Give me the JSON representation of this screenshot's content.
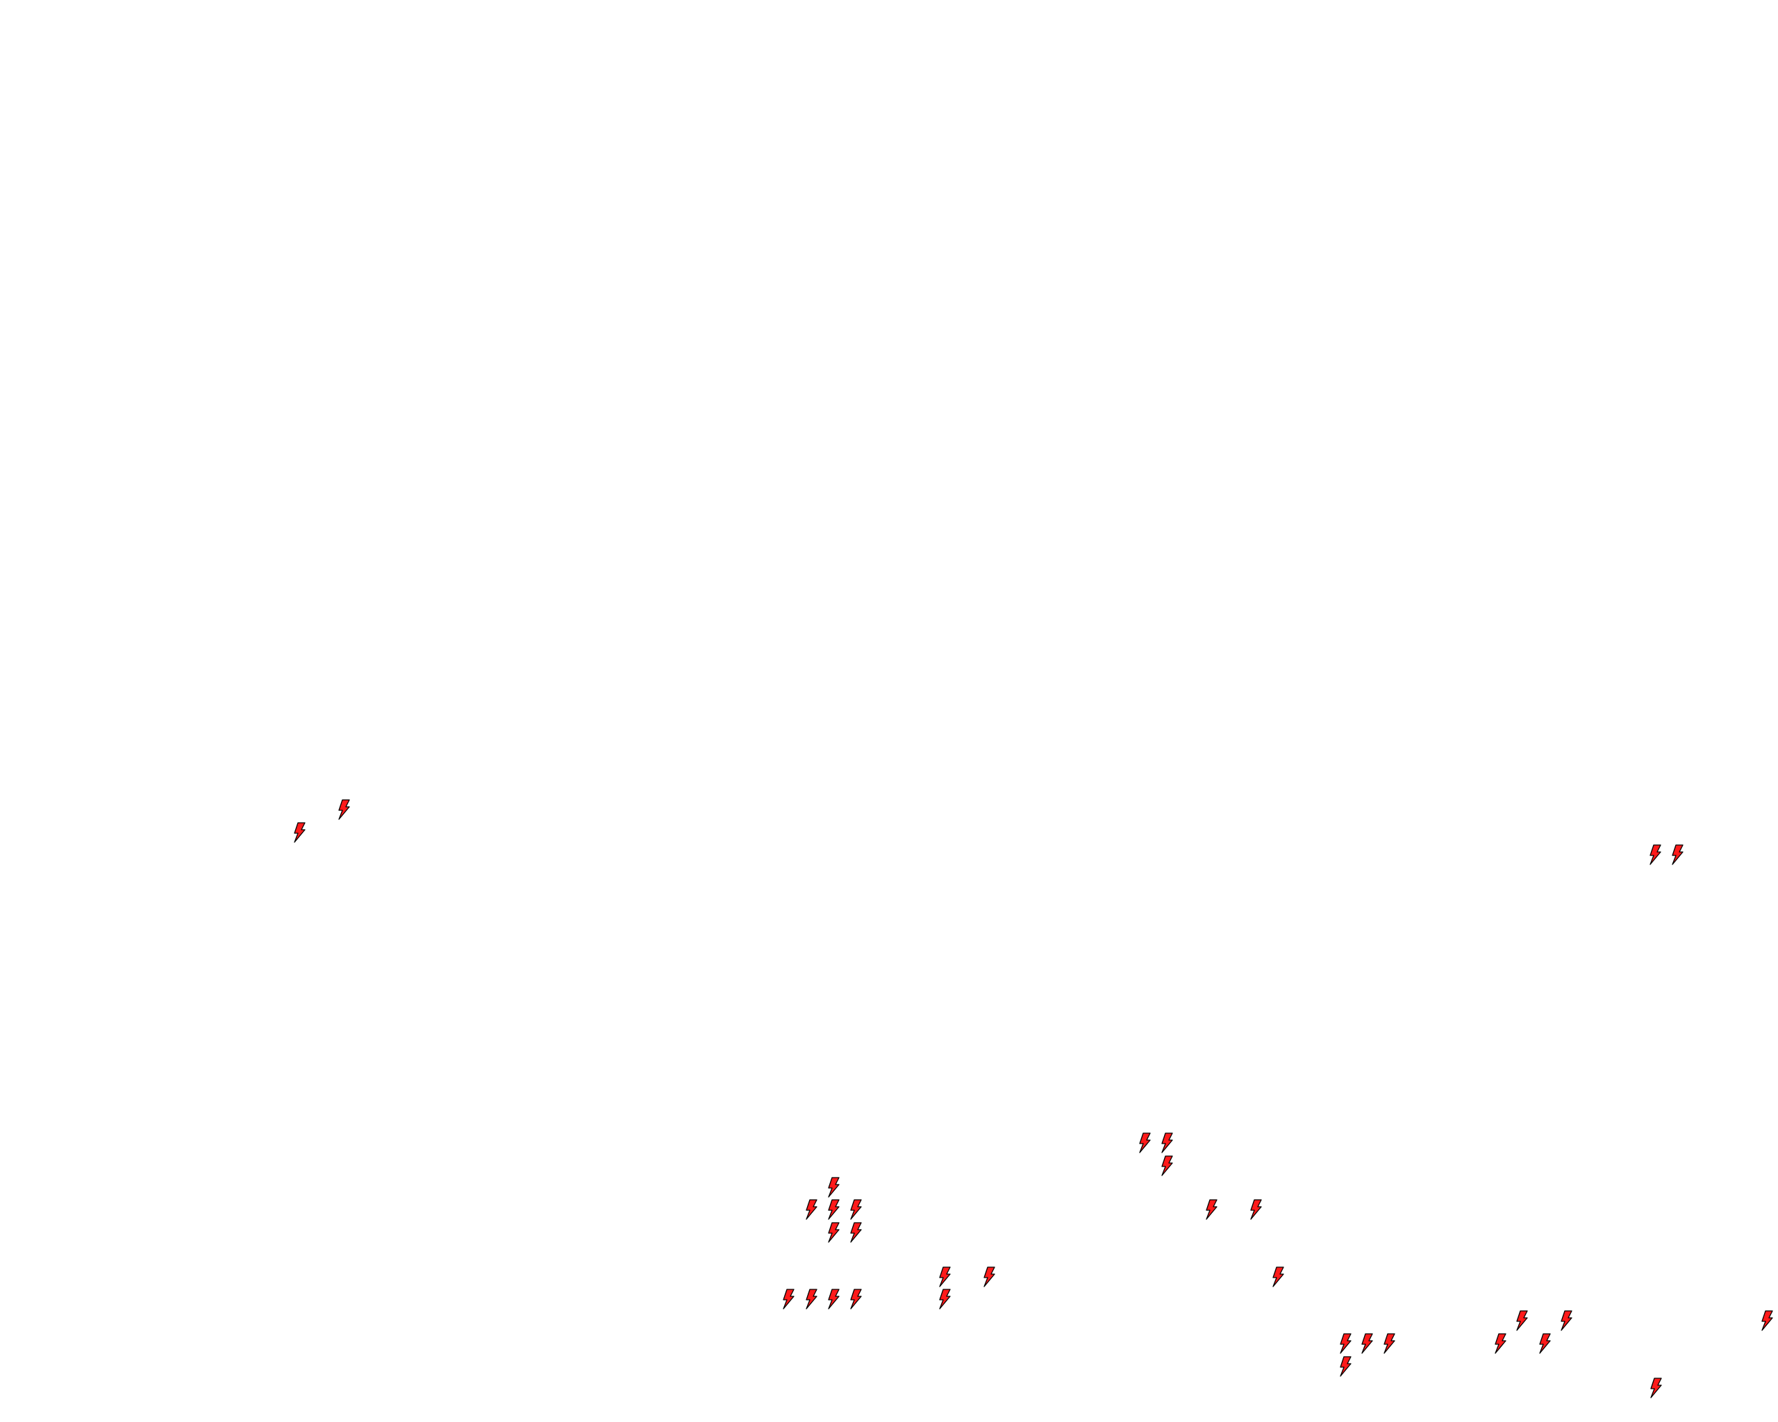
{
  "map": {
    "background_color": "#ffffff",
    "marker_icon": "lightning-bolt-icon",
    "marker_fill_color": "#ff1a1a",
    "marker_stroke_color": "#000000",
    "marker_count": 34
  }
}
